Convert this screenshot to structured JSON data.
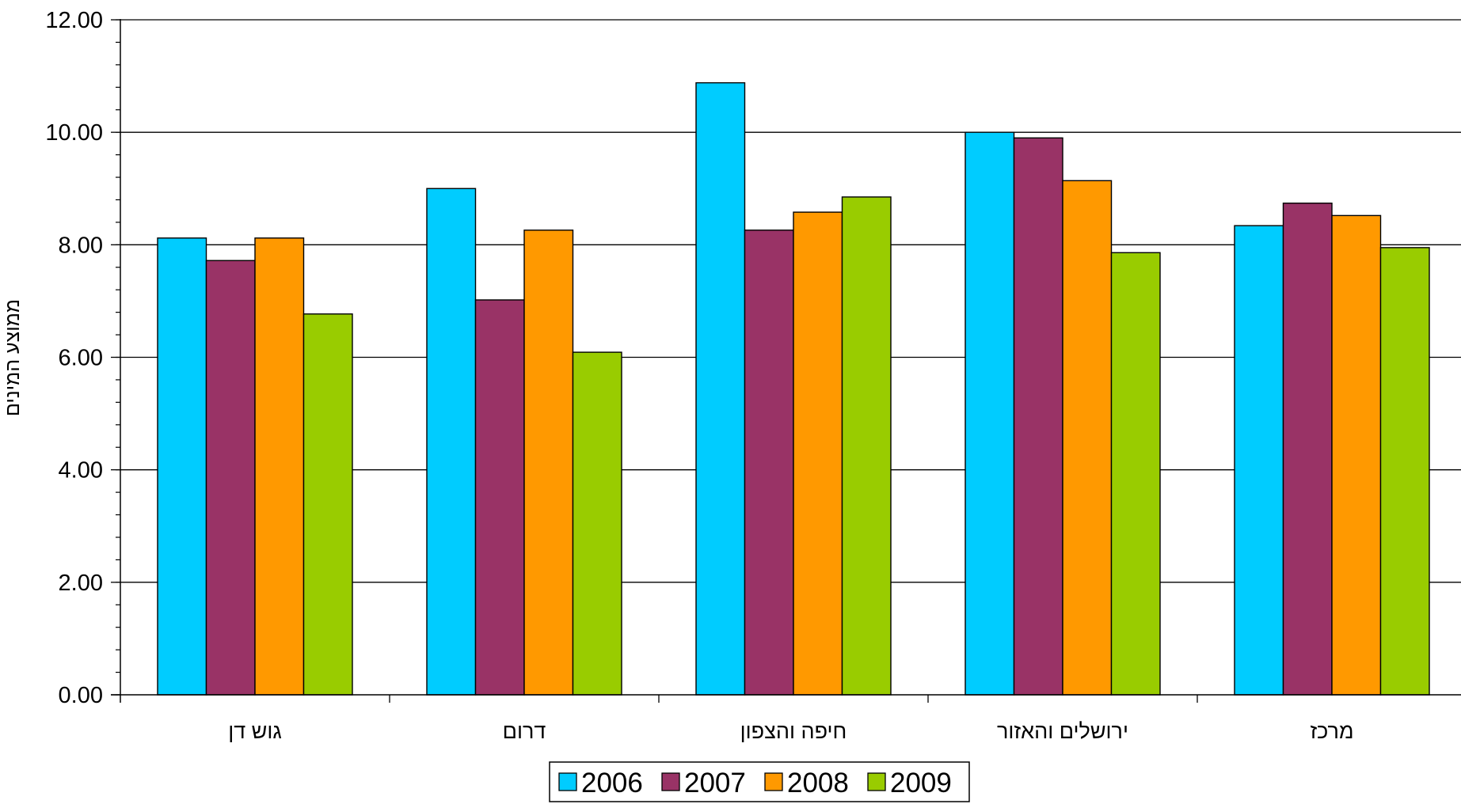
{
  "chart_data": {
    "type": "bar",
    "title": "",
    "xlabel": "",
    "ylabel": "ממוצע המינים",
    "ylim": [
      0,
      12
    ],
    "y_tick_step": 2,
    "y_minor_step": 0.4,
    "y_tick_format": "0.00",
    "grid": true,
    "legend_position": "bottom-center",
    "categories": [
      "גוש דן",
      "דרום",
      "חיפה והצפון",
      "ירושלים והאזור",
      "מרכז"
    ],
    "series": [
      {
        "name": "2006",
        "color": "#00ccff",
        "values": [
          8.12,
          9.0,
          10.88,
          10.0,
          8.34
        ]
      },
      {
        "name": "2007",
        "color": "#993366",
        "values": [
          7.72,
          7.02,
          8.26,
          9.9,
          8.74
        ]
      },
      {
        "name": "2008",
        "color": "#ff9900",
        "values": [
          8.12,
          8.26,
          8.58,
          9.14,
          8.52
        ]
      },
      {
        "name": "2009",
        "color": "#99cc00",
        "values": [
          6.77,
          6.09,
          8.85,
          7.86,
          7.95
        ]
      }
    ]
  }
}
